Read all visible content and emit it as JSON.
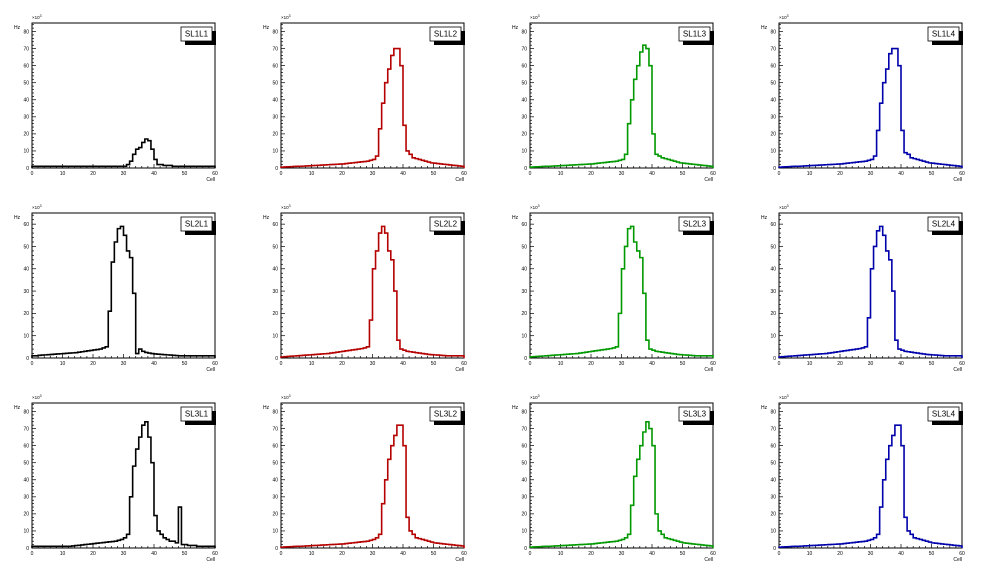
{
  "chart_data": [
    {
      "type": "line",
      "title": "SL1L1",
      "ylabel": "Hz",
      "xlabel": "Cell",
      "y_multiplier": "×10",
      "y_multiplier_exp": "3",
      "xlim": [
        0,
        60
      ],
      "ylim": [
        0,
        85
      ],
      "xticks": [
        0,
        10,
        20,
        30,
        40,
        50,
        60
      ],
      "yticks": [
        0,
        10,
        20,
        30,
        40,
        50,
        60,
        70,
        80
      ],
      "color": "#000000",
      "series": [
        {
          "values": [
            1,
            1,
            1,
            1,
            1,
            1,
            1,
            1,
            1,
            1,
            1,
            1,
            1,
            1,
            1,
            1,
            1,
            1,
            1,
            1,
            1,
            1,
            1,
            1,
            1,
            1,
            1,
            1,
            1,
            1,
            1,
            2,
            4,
            8,
            11,
            12,
            15,
            17,
            16,
            11,
            5,
            2,
            2,
            1.5,
            1.5,
            1.5,
            1,
            1,
            1,
            1,
            1,
            1,
            1,
            1,
            1,
            1,
            1,
            1,
            1,
            1
          ]
        }
      ]
    },
    {
      "type": "line",
      "title": "SL1L2",
      "ylabel": "Hz",
      "xlabel": "Cell",
      "y_multiplier": "×10",
      "y_multiplier_exp": "3",
      "xlim": [
        0,
        60
      ],
      "ylim": [
        0,
        85
      ],
      "xticks": [
        0,
        10,
        20,
        30,
        40,
        50,
        60
      ],
      "yticks": [
        0,
        10,
        20,
        30,
        40,
        50,
        60,
        70,
        80
      ],
      "color": "#b50000",
      "series": [
        {
          "values": [
            0.5,
            0.6,
            0.7,
            0.8,
            0.9,
            1,
            1,
            1.1,
            1.2,
            1.3,
            1.4,
            1.5,
            1.6,
            1.7,
            1.8,
            1.9,
            2,
            2.1,
            2.2,
            2.3,
            2.4,
            2.6,
            2.8,
            3,
            3.2,
            3.4,
            3.6,
            3.8,
            4,
            4.5,
            5,
            7,
            23,
            38,
            50,
            58,
            66,
            70,
            70,
            60,
            25,
            10,
            8,
            6,
            5.5,
            5,
            4.5,
            4,
            3.5,
            3,
            2.8,
            2.6,
            2.4,
            2.2,
            2,
            1.8,
            1.6,
            1.4,
            1.2,
            1
          ]
        }
      ]
    },
    {
      "type": "line",
      "title": "SL1L3",
      "ylabel": "Hz",
      "xlabel": "Cell",
      "y_multiplier": "×10",
      "y_multiplier_exp": "3",
      "xlim": [
        0,
        60
      ],
      "ylim": [
        0,
        85
      ],
      "xticks": [
        0,
        10,
        20,
        30,
        40,
        50,
        60
      ],
      "yticks": [
        0,
        10,
        20,
        30,
        40,
        50,
        60,
        70,
        80
      ],
      "color": "#009900",
      "series": [
        {
          "values": [
            0.5,
            0.6,
            0.7,
            0.8,
            0.9,
            1,
            1,
            1.1,
            1.2,
            1.3,
            1.4,
            1.5,
            1.6,
            1.7,
            1.8,
            1.9,
            2,
            2.1,
            2.2,
            2.3,
            2.4,
            2.6,
            2.8,
            3,
            3.2,
            3.4,
            3.6,
            3.8,
            4,
            4.5,
            5,
            8,
            26,
            40,
            52,
            60,
            68,
            72,
            70,
            60,
            20,
            8,
            7,
            6,
            5.5,
            5,
            4.5,
            4,
            3.5,
            3,
            2.8,
            2.6,
            2.4,
            2.2,
            2,
            1.8,
            1.6,
            1.4,
            1.2,
            1
          ]
        }
      ]
    },
    {
      "type": "line",
      "title": "SL1L4",
      "ylabel": "Hz",
      "xlabel": "Cell",
      "y_multiplier": "×10",
      "y_multiplier_exp": "3",
      "xlim": [
        0,
        60
      ],
      "ylim": [
        0,
        85
      ],
      "xticks": [
        0,
        10,
        20,
        30,
        40,
        50,
        60
      ],
      "yticks": [
        0,
        10,
        20,
        30,
        40,
        50,
        60,
        70,
        80
      ],
      "color": "#0000aa",
      "series": [
        {
          "values": [
            0.5,
            0.6,
            0.7,
            0.8,
            0.9,
            1,
            1,
            1.1,
            1.2,
            1.3,
            1.4,
            1.5,
            1.6,
            1.7,
            1.8,
            1.9,
            2,
            2.1,
            2.2,
            2.3,
            2.4,
            2.6,
            2.8,
            3,
            3.2,
            3.4,
            3.6,
            3.8,
            4,
            4.5,
            5,
            7,
            22,
            38,
            50,
            58,
            67,
            70,
            70,
            60,
            22,
            9,
            8,
            6,
            5.5,
            5,
            4.5,
            4,
            3.5,
            3,
            2.8,
            2.6,
            2.4,
            2.2,
            2,
            1.8,
            1.6,
            1.4,
            1.2,
            1
          ]
        }
      ]
    },
    {
      "type": "line",
      "title": "SL2L1",
      "ylabel": "Hz",
      "xlabel": "Cell",
      "y_multiplier": "×10",
      "y_multiplier_exp": "3",
      "xlim": [
        0,
        60
      ],
      "ylim": [
        0,
        65
      ],
      "xticks": [
        0,
        10,
        20,
        30,
        40,
        50,
        60
      ],
      "yticks": [
        0,
        10,
        20,
        30,
        40,
        50,
        60
      ],
      "color": "#000000",
      "series": [
        {
          "values": [
            1,
            1,
            1.2,
            1.3,
            1.4,
            1.5,
            1.6,
            1.7,
            1.8,
            1.9,
            2,
            2.1,
            2.2,
            2.3,
            2.4,
            2.6,
            2.8,
            3,
            3.2,
            3.4,
            3.6,
            3.8,
            4,
            4.5,
            5,
            21,
            43,
            52,
            58,
            59,
            55,
            48,
            45,
            29,
            2,
            4,
            3,
            2.5,
            2.2,
            2,
            1.8,
            1.7,
            1.6,
            1.5,
            1.4,
            1.3,
            1.2,
            1.1,
            1,
            1,
            1,
            1,
            1,
            1,
            1,
            1,
            1,
            1,
            1,
            1
          ]
        }
      ]
    },
    {
      "type": "line",
      "title": "SL2L2",
      "ylabel": "Hz",
      "xlabel": "Cell",
      "y_multiplier": "×10",
      "y_multiplier_exp": "3",
      "xlim": [
        0,
        60
      ],
      "ylim": [
        0,
        65
      ],
      "xticks": [
        0,
        10,
        20,
        30,
        40,
        50,
        60
      ],
      "yticks": [
        0,
        10,
        20,
        30,
        40,
        50,
        60
      ],
      "color": "#b50000",
      "series": [
        {
          "values": [
            0.5,
            0.6,
            0.7,
            0.8,
            0.9,
            1,
            1.1,
            1.2,
            1.3,
            1.4,
            1.5,
            1.6,
            1.7,
            1.8,
            1.9,
            2,
            2.2,
            2.4,
            2.6,
            2.8,
            3,
            3.2,
            3.4,
            3.6,
            3.8,
            4,
            4.2,
            4.5,
            5,
            17,
            40,
            48,
            56,
            59,
            56,
            48,
            44,
            30,
            8,
            4,
            3.5,
            3,
            2.8,
            2.6,
            2.4,
            2.2,
            2,
            1.8,
            1.6,
            1.5,
            1.4,
            1.3,
            1.2,
            1.1,
            1,
            1,
            1,
            1,
            1,
            1
          ]
        }
      ]
    },
    {
      "type": "line",
      "title": "SL2L3",
      "ylabel": "Hz",
      "xlabel": "Cell",
      "y_multiplier": "×10",
      "y_multiplier_exp": "3",
      "xlim": [
        0,
        60
      ],
      "ylim": [
        0,
        65
      ],
      "xticks": [
        0,
        10,
        20,
        30,
        40,
        50,
        60
      ],
      "yticks": [
        0,
        10,
        20,
        30,
        40,
        50,
        60
      ],
      "color": "#009900",
      "series": [
        {
          "values": [
            0.5,
            0.6,
            0.7,
            0.8,
            0.9,
            1,
            1.1,
            1.2,
            1.3,
            1.4,
            1.5,
            1.6,
            1.7,
            1.8,
            1.9,
            2,
            2.2,
            2.4,
            2.6,
            2.8,
            3,
            3.2,
            3.4,
            3.6,
            3.8,
            4,
            4.2,
            4.5,
            5,
            20,
            40,
            50,
            58,
            59,
            52,
            48,
            45,
            29,
            8,
            4,
            3.5,
            3,
            2.8,
            2.6,
            2.4,
            2.2,
            2,
            1.8,
            1.6,
            1.5,
            1.4,
            1.3,
            1.2,
            1.1,
            1,
            1,
            1,
            1,
            1,
            1
          ]
        }
      ]
    },
    {
      "type": "line",
      "title": "SL2L4",
      "ylabel": "Hz",
      "xlabel": "Cell",
      "y_multiplier": "×10",
      "y_multiplier_exp": "3",
      "xlim": [
        0,
        60
      ],
      "ylim": [
        0,
        65
      ],
      "xticks": [
        0,
        10,
        20,
        30,
        40,
        50,
        60
      ],
      "yticks": [
        0,
        10,
        20,
        30,
        40,
        50,
        60
      ],
      "color": "#0000aa",
      "series": [
        {
          "values": [
            0.5,
            0.6,
            0.7,
            0.8,
            0.9,
            1,
            1.1,
            1.2,
            1.3,
            1.4,
            1.5,
            1.6,
            1.7,
            1.8,
            1.9,
            2,
            2.2,
            2.4,
            2.6,
            2.8,
            3,
            3.2,
            3.4,
            3.6,
            3.8,
            4,
            4.2,
            4.5,
            5,
            18,
            40,
            50,
            57,
            59,
            55,
            48,
            44,
            30,
            8,
            4,
            3.5,
            3,
            2.8,
            2.6,
            2.4,
            2.2,
            2,
            1.8,
            1.6,
            1.5,
            1.4,
            1.3,
            1.2,
            1.1,
            1,
            1,
            1,
            1,
            1,
            1
          ]
        }
      ]
    },
    {
      "type": "line",
      "title": "SL3L1",
      "ylabel": "Hz",
      "xlabel": "Cell",
      "y_multiplier": "×10",
      "y_multiplier_exp": "3",
      "xlim": [
        0,
        60
      ],
      "ylim": [
        0,
        85
      ],
      "xticks": [
        0,
        10,
        20,
        30,
        40,
        50,
        60
      ],
      "yticks": [
        0,
        10,
        20,
        30,
        40,
        50,
        60,
        70,
        80
      ],
      "color": "#000000",
      "series": [
        {
          "values": [
            1,
            1,
            1,
            1,
            1,
            1,
            1,
            1,
            1,
            1,
            1,
            1,
            1,
            1.2,
            1.4,
            1.6,
            1.8,
            2,
            2.2,
            2.4,
            2.6,
            2.8,
            3,
            3.2,
            3.4,
            3.6,
            3.8,
            4,
            4.5,
            5,
            6,
            8,
            30,
            48,
            58,
            65,
            72,
            74,
            65,
            50,
            19,
            10,
            8,
            6,
            5,
            4,
            4,
            3,
            24,
            2,
            2,
            1.5,
            1.5,
            1.5,
            1,
            1,
            1,
            1,
            1,
            1
          ]
        }
      ]
    },
    {
      "type": "line",
      "title": "SL3L2",
      "ylabel": "Hz",
      "xlabel": "Cell",
      "y_multiplier": "×10",
      "y_multiplier_exp": "3",
      "xlim": [
        0,
        60
      ],
      "ylim": [
        0,
        85
      ],
      "xticks": [
        0,
        10,
        20,
        30,
        40,
        50,
        60
      ],
      "yticks": [
        0,
        10,
        20,
        30,
        40,
        50,
        60,
        70,
        80
      ],
      "color": "#b50000",
      "series": [
        {
          "values": [
            0.5,
            0.6,
            0.7,
            0.8,
            0.9,
            1,
            1,
            1.1,
            1.2,
            1.3,
            1.4,
            1.5,
            1.6,
            1.7,
            1.8,
            1.9,
            2,
            2.1,
            2.2,
            2.3,
            2.4,
            2.6,
            2.8,
            3,
            3.2,
            3.4,
            3.6,
            3.8,
            4,
            4.5,
            5,
            6,
            8,
            26,
            40,
            52,
            60,
            66,
            72,
            72,
            60,
            18,
            10,
            8,
            6,
            5.5,
            5,
            4.5,
            4,
            3.5,
            3,
            2.8,
            2.6,
            2.4,
            2.2,
            2,
            1.8,
            1.6,
            1.4,
            1.2
          ]
        }
      ]
    },
    {
      "type": "line",
      "title": "SL3L3",
      "ylabel": "Hz",
      "xlabel": "Cell",
      "y_multiplier": "×10",
      "y_multiplier_exp": "3",
      "xlim": [
        0,
        60
      ],
      "ylim": [
        0,
        85
      ],
      "xticks": [
        0,
        10,
        20,
        30,
        40,
        50,
        60
      ],
      "yticks": [
        0,
        10,
        20,
        30,
        40,
        50,
        60,
        70,
        80
      ],
      "color": "#009900",
      "series": [
        {
          "values": [
            0.5,
            0.6,
            0.7,
            0.8,
            0.9,
            1,
            1,
            1.1,
            1.2,
            1.3,
            1.4,
            1.5,
            1.6,
            1.7,
            1.8,
            1.9,
            2,
            2.1,
            2.2,
            2.3,
            2.4,
            2.6,
            2.8,
            3,
            3.2,
            3.4,
            3.6,
            3.8,
            4,
            4.5,
            5,
            6,
            8,
            25,
            42,
            52,
            60,
            68,
            74,
            70,
            60,
            20,
            10,
            8,
            6,
            5.5,
            5,
            4.5,
            4,
            3.5,
            3,
            2.8,
            2.6,
            2.4,
            2.2,
            2,
            1.8,
            1.6,
            1.4,
            1.2
          ]
        }
      ]
    },
    {
      "type": "line",
      "title": "SL3L4",
      "ylabel": "Hz",
      "xlabel": "Cell",
      "y_multiplier": "×10",
      "y_multiplier_exp": "3",
      "xlim": [
        0,
        60
      ],
      "ylim": [
        0,
        85
      ],
      "xticks": [
        0,
        10,
        20,
        30,
        40,
        50,
        60
      ],
      "yticks": [
        0,
        10,
        20,
        30,
        40,
        50,
        60,
        70,
        80
      ],
      "color": "#0000aa",
      "series": [
        {
          "values": [
            0.5,
            0.6,
            0.7,
            0.8,
            0.9,
            1,
            1,
            1.1,
            1.2,
            1.3,
            1.4,
            1.5,
            1.6,
            1.7,
            1.8,
            1.9,
            2,
            2.1,
            2.2,
            2.3,
            2.4,
            2.6,
            2.8,
            3,
            3.2,
            3.4,
            3.6,
            3.8,
            4,
            4.5,
            5,
            6,
            8,
            24,
            40,
            52,
            60,
            66,
            72,
            72,
            60,
            18,
            10,
            8,
            6,
            5.5,
            5,
            4.5,
            4,
            3.5,
            3,
            2.8,
            2.6,
            2.4,
            2.2,
            2,
            1.8,
            1.6,
            1.4,
            1.2
          ]
        }
      ]
    }
  ]
}
